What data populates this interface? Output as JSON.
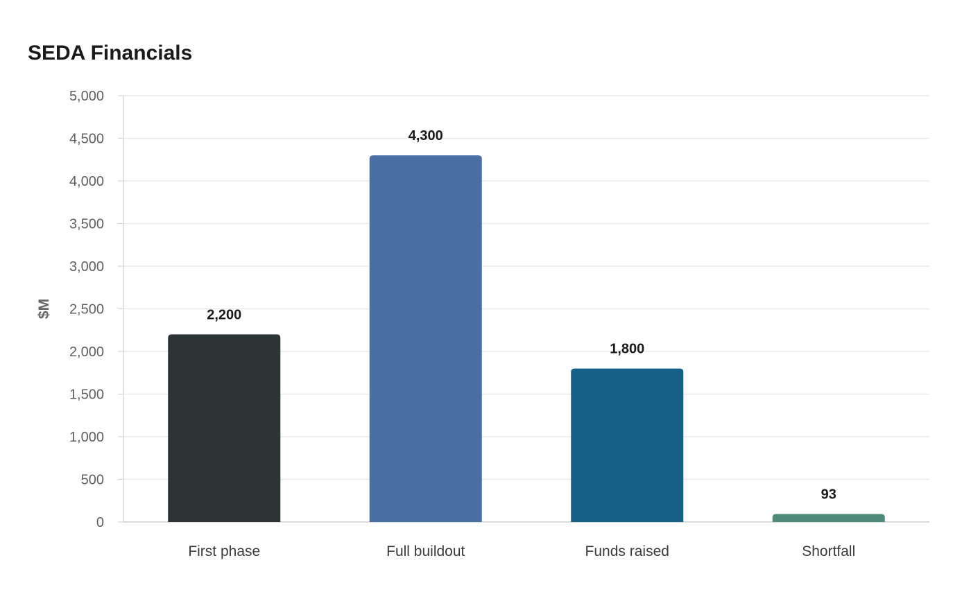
{
  "chart_data": {
    "type": "bar",
    "title": "SEDA Financials",
    "xlabel": "",
    "ylabel": "$M",
    "ylim": [
      0,
      5000
    ],
    "yticks": [
      0,
      500,
      1000,
      1500,
      2000,
      2500,
      3000,
      3500,
      4000,
      4500,
      5000
    ],
    "ytick_labels": [
      "0",
      "500",
      "1,000",
      "1,500",
      "2,000",
      "2,500",
      "3,000",
      "3,500",
      "4,000",
      "4,500",
      "5,000"
    ],
    "categories": [
      "First phase",
      "Full buildout",
      "Funds raised",
      "Shortfall"
    ],
    "values": [
      2200,
      4300,
      1800,
      93
    ],
    "data_labels": [
      "2,200",
      "4,300",
      "1,800",
      "93"
    ],
    "colors": [
      "#2d3436",
      "#4a6fa5",
      "#166088",
      "#4f8a7b"
    ],
    "grid": true,
    "legend": "none"
  }
}
